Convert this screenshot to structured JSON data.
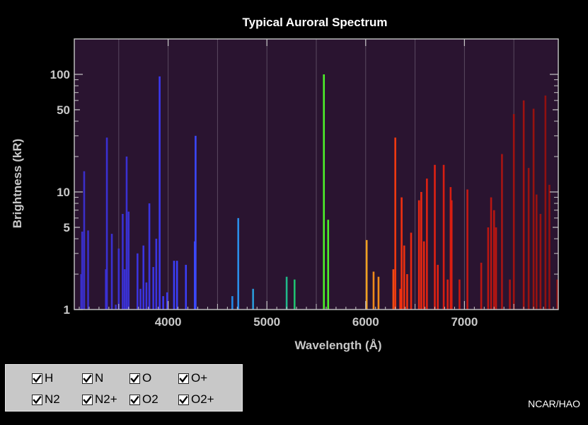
{
  "chart_data": {
    "type": "bar",
    "title": "Typical Auroral Spectrum",
    "xlabel": "Wavelength (Å)",
    "ylabel": "Brightness (kR)",
    "xlim": [
      3050,
      7950
    ],
    "ylim": [
      1,
      200
    ],
    "yscale": "log",
    "xticks": [
      4000,
      5000,
      6000,
      7000
    ],
    "yticks": [
      1,
      5,
      10,
      50,
      100
    ],
    "grid": true,
    "background_color": "#2a1430",
    "lines": [
      {
        "x": 3120,
        "y": 2.0,
        "color": "#3a2ec8"
      },
      {
        "x": 3130,
        "y": 4.6,
        "color": "#3a2ec8"
      },
      {
        "x": 3150,
        "y": 15,
        "color": "#3a2ec8"
      },
      {
        "x": 3190,
        "y": 4.7,
        "color": "#3a2ec8"
      },
      {
        "x": 3370,
        "y": 2.2,
        "color": "#3a30d2"
      },
      {
        "x": 3380,
        "y": 29,
        "color": "#3a30d2"
      },
      {
        "x": 3430,
        "y": 4.4,
        "color": "#3a30d2"
      },
      {
        "x": 3470,
        "y": 1.1,
        "color": "#3a30d2"
      },
      {
        "x": 3500,
        "y": 3.3,
        "color": "#3a30d2"
      },
      {
        "x": 3540,
        "y": 6.5,
        "color": "#3a30d2"
      },
      {
        "x": 3560,
        "y": 2.2,
        "color": "#3a30d2"
      },
      {
        "x": 3580,
        "y": 20,
        "color": "#3a30d2"
      },
      {
        "x": 3600,
        "y": 6.8,
        "color": "#3a30d2"
      },
      {
        "x": 3690,
        "y": 3.0,
        "color": "#3b34e0"
      },
      {
        "x": 3720,
        "y": 1.5,
        "color": "#3b34e0"
      },
      {
        "x": 3750,
        "y": 3.5,
        "color": "#3b34e0"
      },
      {
        "x": 3780,
        "y": 1.7,
        "color": "#3b34e0"
      },
      {
        "x": 3810,
        "y": 8.0,
        "color": "#3b34e0"
      },
      {
        "x": 3850,
        "y": 2.3,
        "color": "#3b34e0"
      },
      {
        "x": 3880,
        "y": 4.0,
        "color": "#3b34e0"
      },
      {
        "x": 3914,
        "y": 96,
        "color": "#3b38f0"
      },
      {
        "x": 3950,
        "y": 1.3,
        "color": "#3b38f0"
      },
      {
        "x": 3990,
        "y": 1.4,
        "color": "#3b38f0"
      },
      {
        "x": 4060,
        "y": 2.6,
        "color": "#3b3ef5"
      },
      {
        "x": 4090,
        "y": 2.6,
        "color": "#3b3ef5"
      },
      {
        "x": 4180,
        "y": 2.4,
        "color": "#3b3ef5"
      },
      {
        "x": 4270,
        "y": 3.8,
        "color": "#3b48f8"
      },
      {
        "x": 4278,
        "y": 30,
        "color": "#3b48f8"
      },
      {
        "x": 4650,
        "y": 1.3,
        "color": "#2288e8"
      },
      {
        "x": 4710,
        "y": 6.0,
        "color": "#2a8ee8"
      },
      {
        "x": 4860,
        "y": 1.5,
        "color": "#2a9ad8"
      },
      {
        "x": 5200,
        "y": 1.9,
        "color": "#20b88a"
      },
      {
        "x": 5280,
        "y": 1.8,
        "color": "#20c070"
      },
      {
        "x": 5577,
        "y": 100,
        "color": "#4cf02a"
      },
      {
        "x": 5620,
        "y": 5.8,
        "color": "#4cf02a"
      },
      {
        "x": 6010,
        "y": 3.9,
        "color": "#f0a020"
      },
      {
        "x": 6080,
        "y": 2.1,
        "color": "#f08a1a"
      },
      {
        "x": 6130,
        "y": 1.9,
        "color": "#f08a1a"
      },
      {
        "x": 6280,
        "y": 2.2,
        "color": "#f04a12"
      },
      {
        "x": 6300,
        "y": 29,
        "color": "#f03a10"
      },
      {
        "x": 6350,
        "y": 1.5,
        "color": "#f03010"
      },
      {
        "x": 6364,
        "y": 9.0,
        "color": "#f03010"
      },
      {
        "x": 6390,
        "y": 3.5,
        "color": "#f03010"
      },
      {
        "x": 6420,
        "y": 2.0,
        "color": "#f03010"
      },
      {
        "x": 6460,
        "y": 4.5,
        "color": "#e82812"
      },
      {
        "x": 6540,
        "y": 8.5,
        "color": "#e82812"
      },
      {
        "x": 6563,
        "y": 10,
        "color": "#e82812"
      },
      {
        "x": 6590,
        "y": 3.8,
        "color": "#e82812"
      },
      {
        "x": 6620,
        "y": 13,
        "color": "#e02212"
      },
      {
        "x": 6700,
        "y": 17,
        "color": "#e02212"
      },
      {
        "x": 6730,
        "y": 2.4,
        "color": "#e02212"
      },
      {
        "x": 6790,
        "y": 17,
        "color": "#d81e12"
      },
      {
        "x": 6830,
        "y": 1.8,
        "color": "#d81e12"
      },
      {
        "x": 6860,
        "y": 11,
        "color": "#d81e12"
      },
      {
        "x": 6870,
        "y": 8.5,
        "color": "#d81e12"
      },
      {
        "x": 6950,
        "y": 1.8,
        "color": "#c81812"
      },
      {
        "x": 7030,
        "y": 10.5,
        "color": "#c81812"
      },
      {
        "x": 7170,
        "y": 2.5,
        "color": "#b81612"
      },
      {
        "x": 7240,
        "y": 5.0,
        "color": "#b81612"
      },
      {
        "x": 7270,
        "y": 9.0,
        "color": "#b81612"
      },
      {
        "x": 7300,
        "y": 7.0,
        "color": "#b81612"
      },
      {
        "x": 7320,
        "y": 5.0,
        "color": "#b81612"
      },
      {
        "x": 7380,
        "y": 21,
        "color": "#a81412"
      },
      {
        "x": 7460,
        "y": 1.8,
        "color": "#a81412"
      },
      {
        "x": 7500,
        "y": 46,
        "color": "#a01210"
      },
      {
        "x": 7600,
        "y": 60,
        "color": "#a01210"
      },
      {
        "x": 7650,
        "y": 16,
        "color": "#981210"
      },
      {
        "x": 7700,
        "y": 51,
        "color": "#981210"
      },
      {
        "x": 7730,
        "y": 9.5,
        "color": "#981210"
      },
      {
        "x": 7770,
        "y": 6.5,
        "color": "#981210"
      },
      {
        "x": 7820,
        "y": 66,
        "color": "#901010"
      },
      {
        "x": 7860,
        "y": 11.5,
        "color": "#901010"
      },
      {
        "x": 7940,
        "y": 1.8,
        "color": "#901010"
      }
    ]
  },
  "legend": {
    "items": [
      {
        "label": "H",
        "checked": true
      },
      {
        "label": "N",
        "checked": true
      },
      {
        "label": "O",
        "checked": true
      },
      {
        "label": "O+",
        "checked": true
      },
      {
        "label": "N2",
        "checked": true
      },
      {
        "label": "N2+",
        "checked": true
      },
      {
        "label": "O2",
        "checked": true
      },
      {
        "label": "O2+",
        "checked": true
      }
    ]
  },
  "credit": "NCAR/HAO"
}
